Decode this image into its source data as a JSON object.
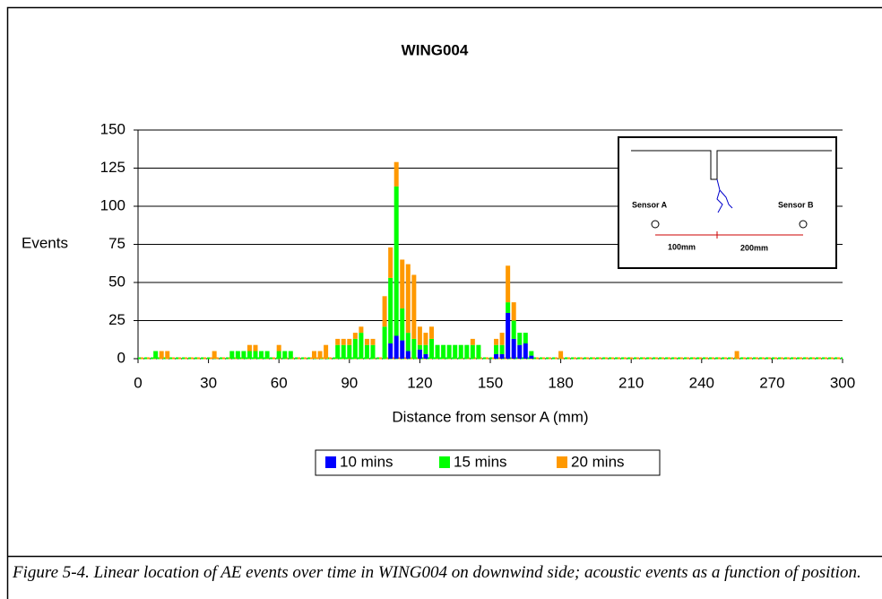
{
  "chart_data": {
    "type": "bar",
    "stacked": true,
    "title": "WING004",
    "x_label": "Distance from sensor A (mm)",
    "y_label": "Events",
    "x": [
      7.5,
      10,
      12.5,
      32.5,
      40,
      42.5,
      45,
      47.5,
      50,
      52.5,
      55,
      60,
      62.5,
      65,
      75,
      77.5,
      80,
      85,
      87.5,
      90,
      92.5,
      95,
      97.5,
      100,
      105,
      107.5,
      110,
      112.5,
      115,
      117.5,
      120,
      122.5,
      125,
      127.5,
      130,
      132.5,
      135,
      137.5,
      140,
      142.5,
      145,
      152.5,
      155,
      157.5,
      160,
      162.5,
      165,
      167.5,
      180,
      255
    ],
    "series": [
      {
        "name": "10 mins",
        "color": "#0000ff",
        "values": [
          0,
          0,
          0,
          0,
          0,
          0,
          0,
          0,
          0,
          0,
          0,
          0,
          0,
          0,
          0,
          0,
          0,
          0,
          0,
          0,
          0,
          0,
          0,
          0,
          0,
          10,
          15,
          12,
          5,
          0,
          6,
          3,
          0,
          0,
          0,
          0,
          0,
          0,
          0,
          0,
          0,
          3,
          3,
          30,
          13,
          9,
          10,
          2,
          0,
          0
        ]
      },
      {
        "name": "15 mins",
        "color": "#00ff00",
        "values": [
          5,
          0,
          0,
          0,
          5,
          5,
          5,
          5,
          5,
          5,
          5,
          5,
          5,
          5,
          0,
          0,
          0,
          9,
          9,
          9,
          13,
          17,
          9,
          9,
          21,
          43,
          98,
          21,
          12,
          13,
          3,
          6,
          13,
          9,
          9,
          9,
          9,
          9,
          9,
          9,
          9,
          6,
          6,
          7,
          12,
          8,
          7,
          3,
          0,
          0
        ]
      },
      {
        "name": "20 mins",
        "color": "#ff9900",
        "values": [
          0,
          5,
          5,
          5,
          0,
          0,
          0,
          4,
          4,
          0,
          0,
          4,
          0,
          0,
          5,
          5,
          9,
          4,
          4,
          4,
          4,
          4,
          4,
          4,
          20,
          20,
          16,
          32,
          45,
          42,
          12,
          8,
          8,
          0,
          0,
          0,
          0,
          0,
          0,
          4,
          0,
          4,
          8,
          24,
          12,
          0,
          0,
          0,
          5,
          5
        ]
      }
    ],
    "xlim": [
      0,
      300
    ],
    "xticks": [
      0,
      30,
      60,
      90,
      120,
      150,
      180,
      210,
      240,
      270,
      300
    ],
    "ylim": [
      0,
      150
    ],
    "yticks": [
      0,
      25,
      50,
      75,
      100,
      125,
      150
    ],
    "grid": true,
    "annotations": [
      "Sensor A",
      "Sensor B",
      "100mm",
      "200mm"
    ]
  },
  "caption": "Figure 5-4. Linear location of AE events over time in WING004 on downwind side; acoustic events as a function of position."
}
